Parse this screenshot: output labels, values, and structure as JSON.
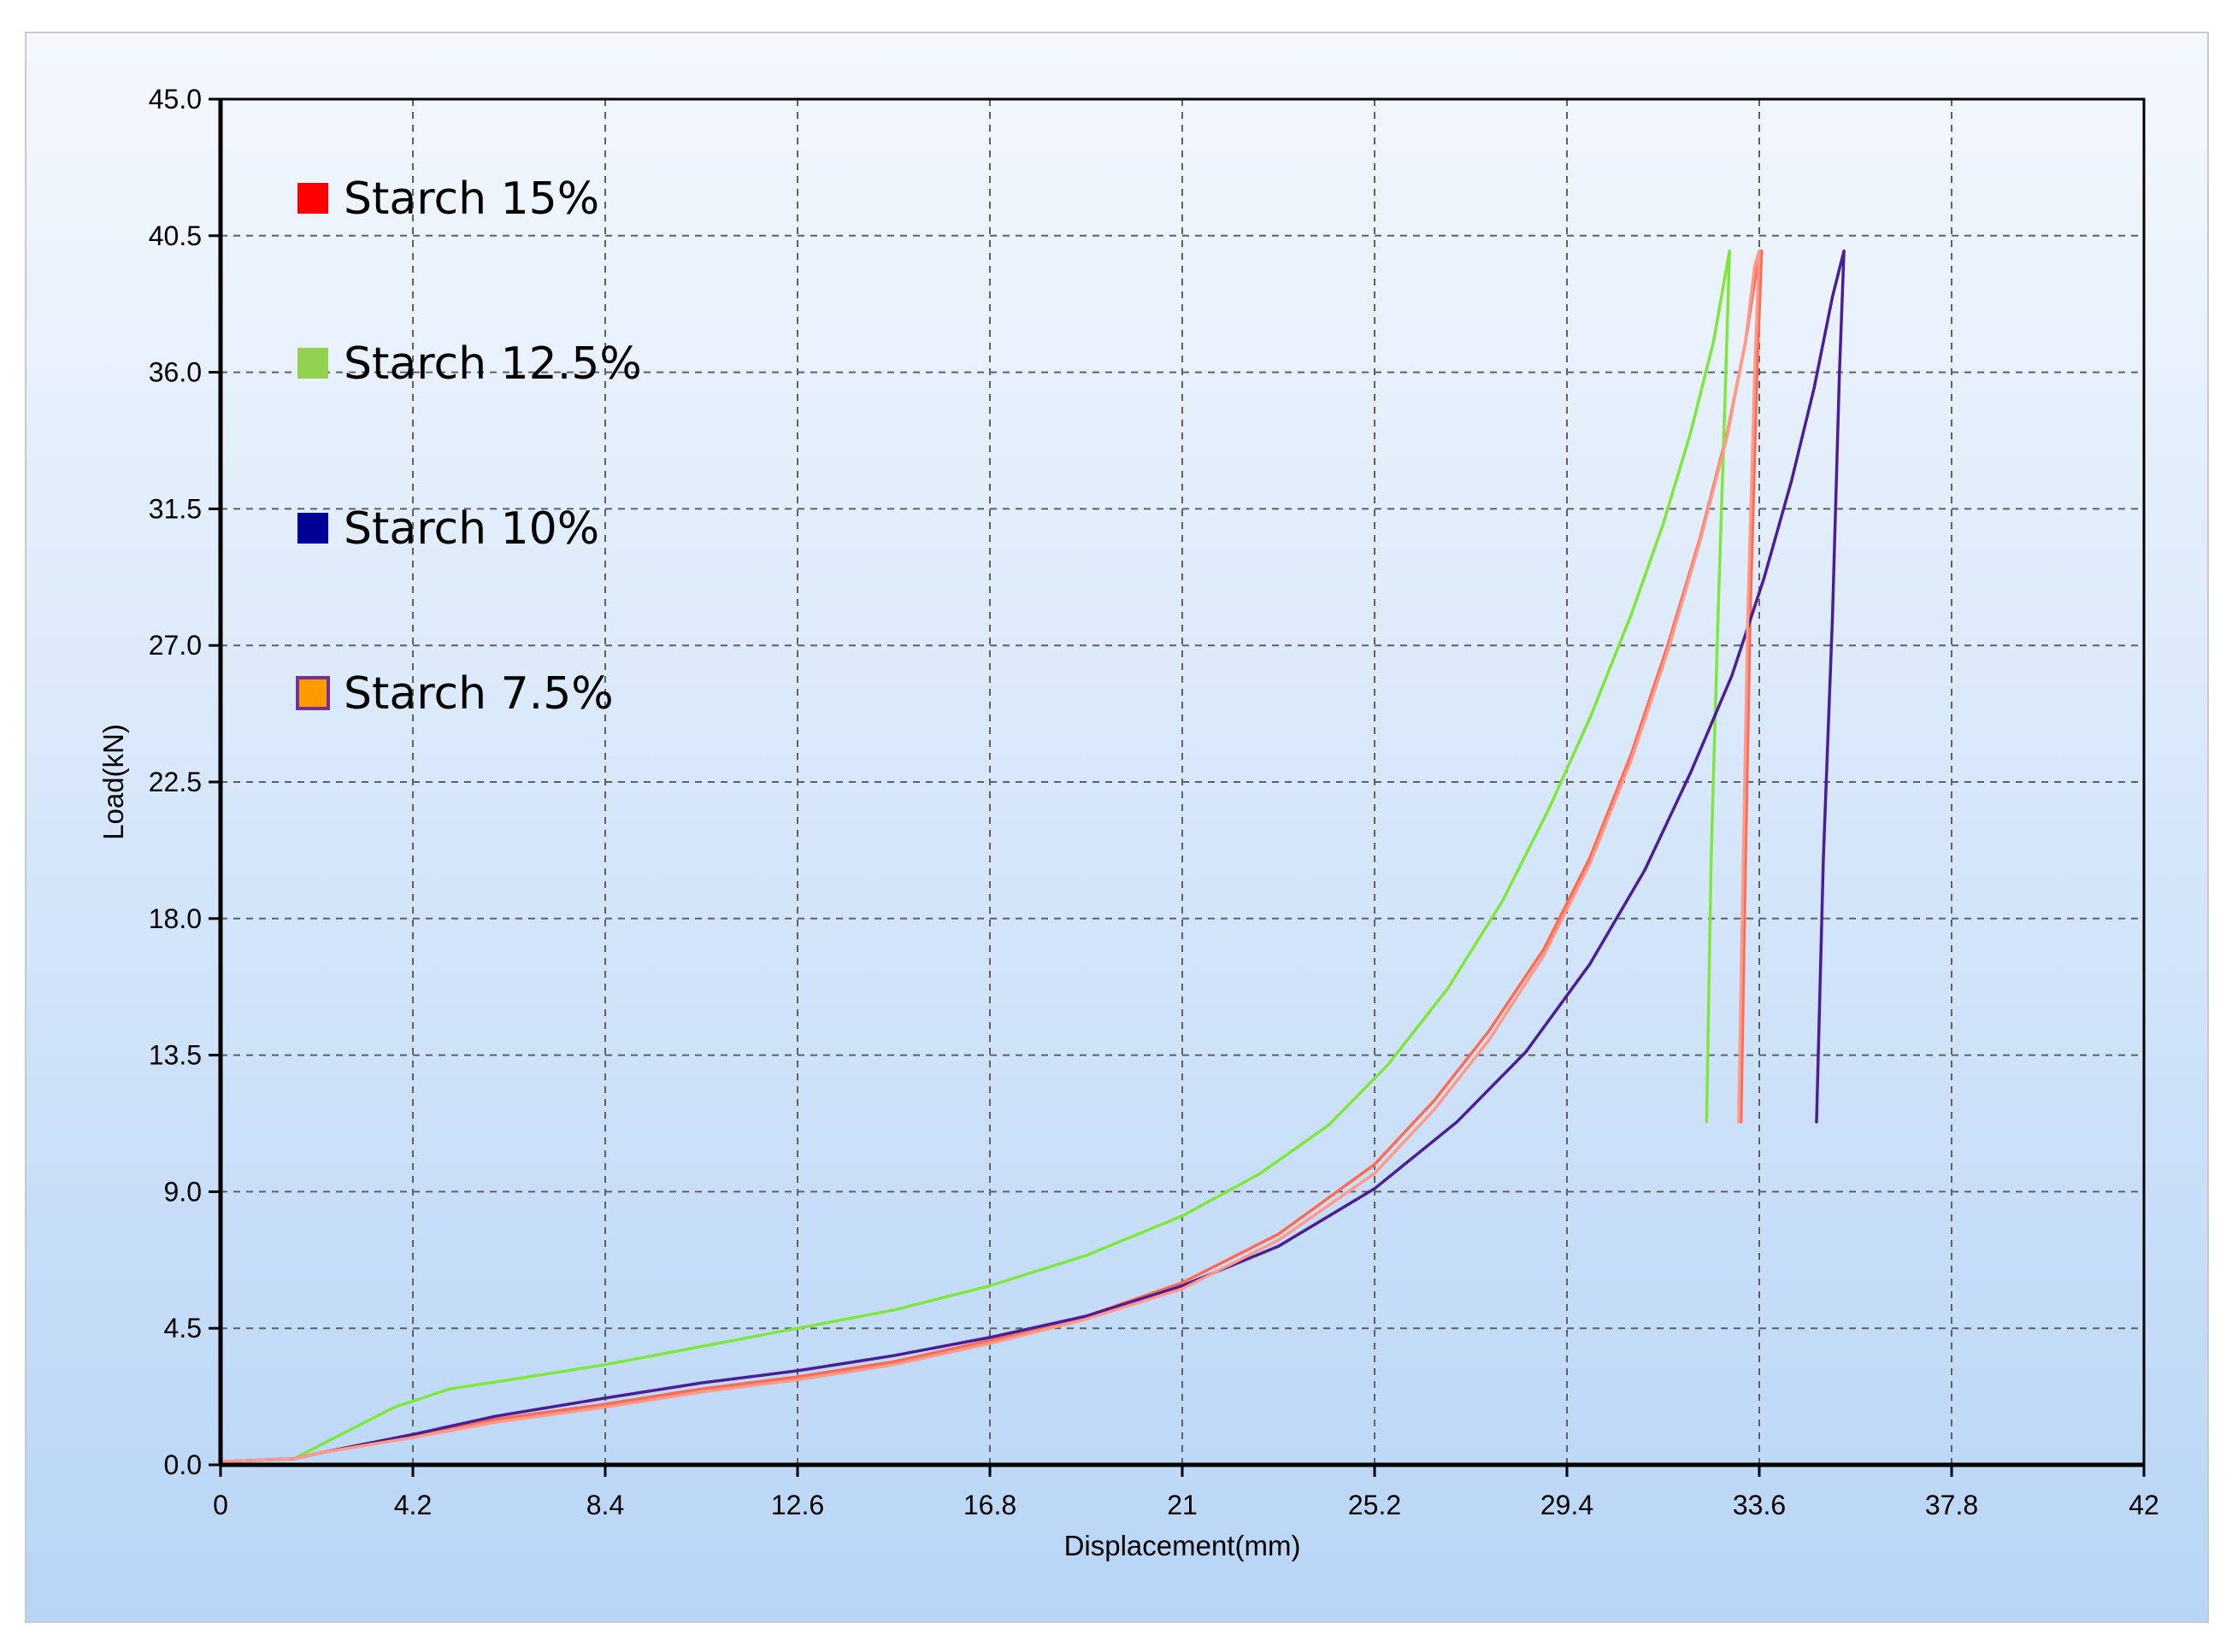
{
  "chart_data": {
    "type": "line",
    "title": "",
    "xlabel": "Displacement(mm)",
    "ylabel": "Load(kN)",
    "xlim": [
      0,
      42
    ],
    "ylim": [
      0,
      45
    ],
    "x_ticks": [
      "0",
      "4.2",
      "8.4",
      "12.6",
      "16.8",
      "21",
      "25.2",
      "29.4",
      "33.6",
      "37.8",
      "42"
    ],
    "y_ticks": [
      "0.0",
      "4.5",
      "9.0",
      "13.5",
      "18.0",
      "22.5",
      "27.0",
      "31.5",
      "36.0",
      "40.5",
      "45.0"
    ],
    "grid": true,
    "legend_position": "top-left inside plot",
    "background_gradient": [
      "#f4f8fd",
      "#b8d5f6"
    ],
    "series": [
      {
        "name": "Starch 15%",
        "color": "#ff0000",
        "line_color": "#ff6a52",
        "points": [
          [
            0,
            0.1
          ],
          [
            1.6,
            0.2
          ],
          [
            2.2,
            0.4
          ],
          [
            4.2,
            1.0
          ],
          [
            6,
            1.5
          ],
          [
            8.4,
            2.0
          ],
          [
            10.5,
            2.5
          ],
          [
            12.6,
            2.9
          ],
          [
            14.7,
            3.4
          ],
          [
            16.8,
            4.1
          ],
          [
            18.9,
            4.9
          ],
          [
            21,
            6.0
          ],
          [
            23.1,
            7.6
          ],
          [
            25.2,
            9.9
          ],
          [
            26.5,
            12.0
          ],
          [
            27.7,
            14.3
          ],
          [
            28.9,
            17.0
          ],
          [
            29.9,
            20.0
          ],
          [
            30.8,
            23.4
          ],
          [
            31.6,
            27.0
          ],
          [
            32.3,
            30.5
          ],
          [
            32.9,
            34.0
          ],
          [
            33.3,
            37.0
          ],
          [
            33.55,
            39.5
          ],
          [
            33.65,
            40.0
          ],
          [
            33.55,
            36.0
          ],
          [
            33.4,
            28.0
          ],
          [
            33.3,
            20.0
          ],
          [
            33.2,
            11.3
          ]
        ]
      },
      {
        "name": "Starch 12.5%",
        "color": "#92d050",
        "line_color": "#7ee83a",
        "points": [
          [
            0,
            0.1
          ],
          [
            1.6,
            0.2
          ],
          [
            2.5,
            0.9
          ],
          [
            3.8,
            1.9
          ],
          [
            5,
            2.5
          ],
          [
            6.3,
            2.8
          ],
          [
            8.4,
            3.3
          ],
          [
            10.5,
            3.9
          ],
          [
            12.6,
            4.5
          ],
          [
            14.7,
            5.1
          ],
          [
            16.8,
            5.9
          ],
          [
            18.9,
            6.9
          ],
          [
            21,
            8.2
          ],
          [
            22.7,
            9.6
          ],
          [
            24.2,
            11.2
          ],
          [
            25.5,
            13.2
          ],
          [
            26.8,
            15.7
          ],
          [
            28,
            18.6
          ],
          [
            29,
            21.6
          ],
          [
            29.9,
            24.6
          ],
          [
            30.8,
            28.0
          ],
          [
            31.5,
            31.0
          ],
          [
            32.1,
            34.0
          ],
          [
            32.6,
            37.0
          ],
          [
            32.95,
            40.0
          ],
          [
            32.85,
            35.0
          ],
          [
            32.7,
            28.0
          ],
          [
            32.55,
            20.0
          ],
          [
            32.45,
            11.3
          ]
        ]
      },
      {
        "name": "Starch 10%",
        "color": "#000096",
        "line_color": "#4a1e96",
        "points": [
          [
            0,
            0.1
          ],
          [
            1.6,
            0.2
          ],
          [
            2.2,
            0.4
          ],
          [
            4.2,
            1.0
          ],
          [
            6,
            1.6
          ],
          [
            8.4,
            2.2
          ],
          [
            10.5,
            2.7
          ],
          [
            12.6,
            3.1
          ],
          [
            14.7,
            3.6
          ],
          [
            16.8,
            4.2
          ],
          [
            18.9,
            4.9
          ],
          [
            21,
            5.9
          ],
          [
            23.1,
            7.2
          ],
          [
            25.2,
            9.1
          ],
          [
            27,
            11.3
          ],
          [
            28.5,
            13.6
          ],
          [
            29.9,
            16.5
          ],
          [
            31.1,
            19.6
          ],
          [
            32.1,
            22.8
          ],
          [
            33,
            26.0
          ],
          [
            33.7,
            29.2
          ],
          [
            34.3,
            32.4
          ],
          [
            34.8,
            35.5
          ],
          [
            35.2,
            38.5
          ],
          [
            35.45,
            40.0
          ],
          [
            35.35,
            36.0
          ],
          [
            35.2,
            28.0
          ],
          [
            35.0,
            20.0
          ],
          [
            34.85,
            11.3
          ]
        ]
      },
      {
        "name": "Starch 7.5%",
        "color": "#ff9900",
        "border_color": "#7030a0",
        "line_color": "#ff9a88",
        "points": [
          [
            0,
            0.1
          ],
          [
            1.6,
            0.2
          ],
          [
            2.2,
            0.4
          ],
          [
            4.2,
            0.9
          ],
          [
            6,
            1.4
          ],
          [
            8.4,
            1.9
          ],
          [
            10.5,
            2.4
          ],
          [
            12.6,
            2.8
          ],
          [
            14.7,
            3.3
          ],
          [
            16.8,
            4.0
          ],
          [
            18.9,
            4.8
          ],
          [
            21,
            5.8
          ],
          [
            23.1,
            7.4
          ],
          [
            25.2,
            9.6
          ],
          [
            26.5,
            11.7
          ],
          [
            27.7,
            14.0
          ],
          [
            28.9,
            16.8
          ],
          [
            29.9,
            19.8
          ],
          [
            30.8,
            23.2
          ],
          [
            31.6,
            26.8
          ],
          [
            32.3,
            30.4
          ],
          [
            32.9,
            33.9
          ],
          [
            33.3,
            37.0
          ],
          [
            33.5,
            39.5
          ],
          [
            33.6,
            40.0
          ],
          [
            33.5,
            36.0
          ],
          [
            33.35,
            28.0
          ],
          [
            33.25,
            20.0
          ],
          [
            33.15,
            11.3
          ]
        ]
      }
    ]
  }
}
